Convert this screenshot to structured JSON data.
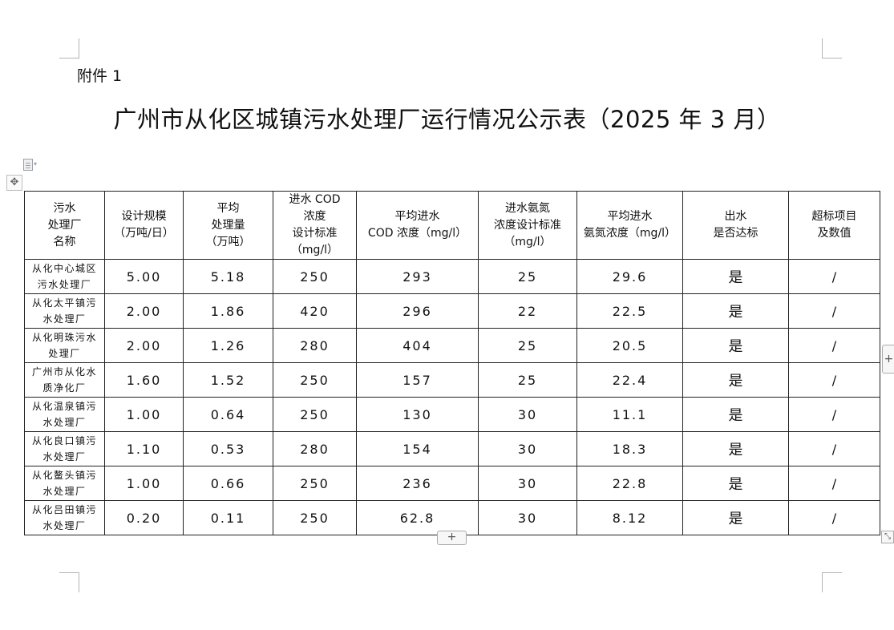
{
  "attachment_label": "附件 1",
  "title": "广州市从化区城镇污水处理厂运行情况公示表（2025 年 3 月）",
  "table": {
    "headers": [
      "污水\n处理厂\n名称",
      "设计规模\n（万吨/日）",
      "平均\n处理量\n（万吨）",
      "进水 COD\n浓度\n设计标准\n（mg/l）",
      "平均进水\nCOD 浓度（mg/l）",
      "进水氨氮\n浓度设计标准\n（mg/l）",
      "平均进水\n氨氮浓度（mg/l）",
      "出水\n是否达标",
      "超标项目\n及数值"
    ],
    "rows": [
      [
        "从化中心城区\n污水处理厂",
        "5.00",
        "5.18",
        "250",
        "293",
        "25",
        "29.6",
        "是",
        "/"
      ],
      [
        "从化太平镇污\n水处理厂",
        "2.00",
        "1.86",
        "420",
        "296",
        "22",
        "22.5",
        "是",
        "/"
      ],
      [
        "从化明珠污水\n处理厂",
        "2.00",
        "1.26",
        "280",
        "404",
        "25",
        "20.5",
        "是",
        "/"
      ],
      [
        "广州市从化水\n质净化厂",
        "1.60",
        "1.52",
        "250",
        "157",
        "25",
        "22.4",
        "是",
        "/"
      ],
      [
        "从化温泉镇污\n水处理厂",
        "1.00",
        "0.64",
        "250",
        "130",
        "30",
        "11.1",
        "是",
        "/"
      ],
      [
        "从化良口镇污\n水处理厂",
        "1.10",
        "0.53",
        "280",
        "154",
        "30",
        "18.3",
        "是",
        "/"
      ],
      [
        "从化鳌头镇污\n水处理厂",
        "1.00",
        "0.66",
        "250",
        "236",
        "30",
        "22.8",
        "是",
        "/"
      ],
      [
        "从化吕田镇污\n水处理厂",
        "0.20",
        "0.11",
        "250",
        "62.8",
        "30",
        "8.12",
        "是",
        "/"
      ]
    ]
  },
  "controls": {
    "add_row_label": "+",
    "add_col_label": "+",
    "move_handle_label": "✥",
    "resize_handle_label": "⤡",
    "doc_menu_arrow": "▾"
  }
}
